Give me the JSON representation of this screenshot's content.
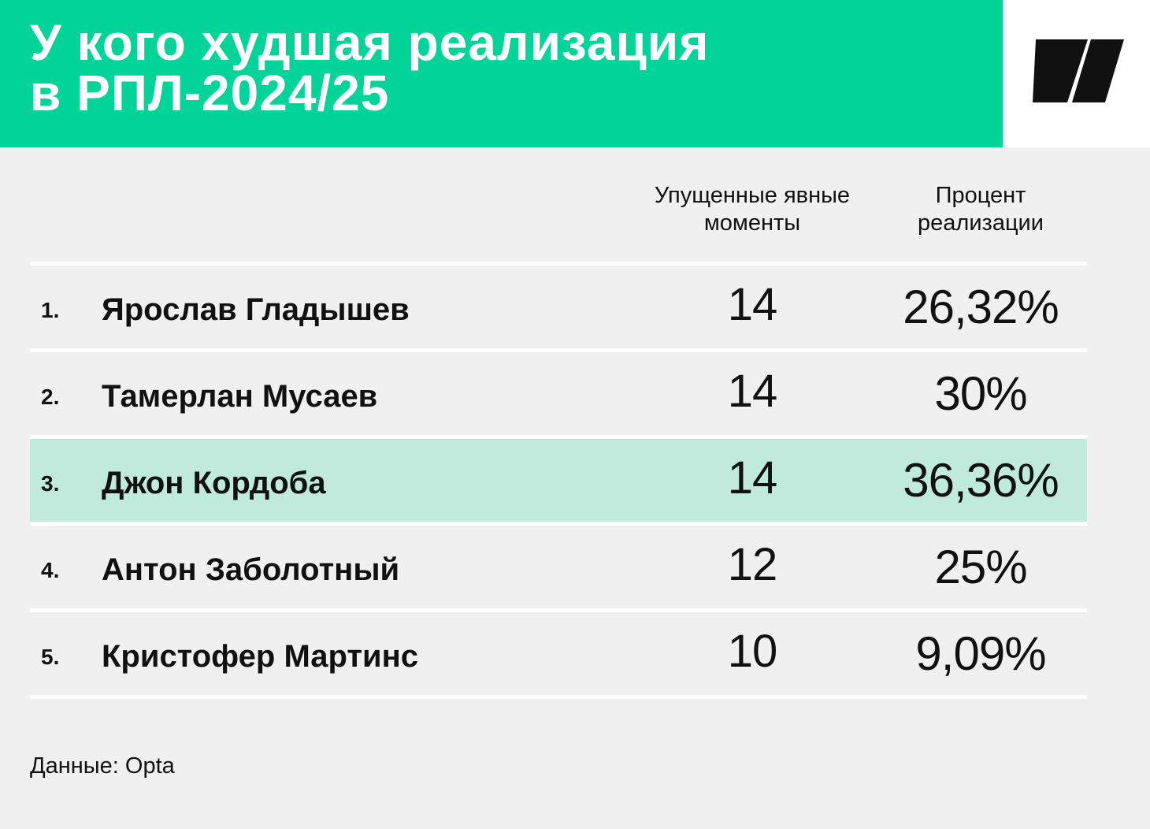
{
  "header": {
    "title_lines": [
      "У кого худшая реализация",
      "в РПЛ-2024/25"
    ],
    "background_color": "#00d498",
    "logo_icon": "publisher-logo-icon"
  },
  "columns": {
    "missed_chances": [
      "Упущенные явные",
      "моменты"
    ],
    "conversion_rate": [
      "Процент",
      "реализации"
    ]
  },
  "chart_data": {
    "type": "table",
    "title": "У кого худшая реализация в РПЛ-2024/25",
    "columns": [
      "Упущенные явные моменты",
      "Процент реализации"
    ],
    "rows": [
      {
        "rank": "1.",
        "name": "Ярослав Гладышев",
        "missed": "14",
        "pct": "26,32%",
        "highlight": false
      },
      {
        "rank": "2.",
        "name": "Тамерлан Мусаев",
        "missed": "14",
        "pct": "30%",
        "highlight": false
      },
      {
        "rank": "3.",
        "name": "Джон Кордоба",
        "missed": "14",
        "pct": "36,36%",
        "highlight": true
      },
      {
        "rank": "4.",
        "name": "Антон Заболотный",
        "missed": "12",
        "pct": "25%",
        "highlight": false
      },
      {
        "rank": "5.",
        "name": "Кристофер Мартинс",
        "missed": "10",
        "pct": "9,09%",
        "highlight": false
      }
    ],
    "highlight_color": "#bfeadc"
  },
  "footer": {
    "source": "Данные: Opta"
  }
}
